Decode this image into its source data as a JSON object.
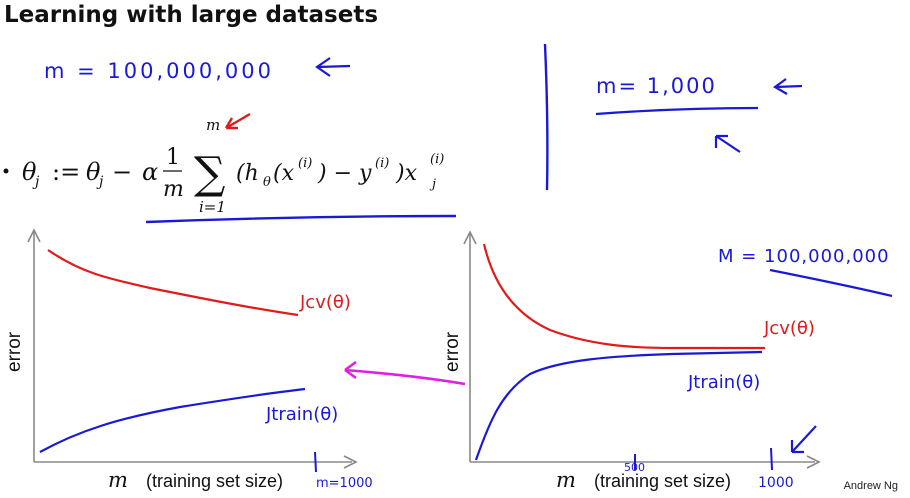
{
  "slide": {
    "title": "Learning with large datasets",
    "author": "Andrew Ng"
  },
  "annotations": {
    "m_large_top": "m = 100,000,000",
    "m_small": "m= 1,000",
    "m_large_right": "M = 100,000,000"
  },
  "equation": {
    "lhs": "θ",
    "lhs_sub": "j",
    "assign": ":=",
    "rhs_theta": "θ",
    "rhs_sub": "j",
    "minus": "−",
    "alpha": "α",
    "frac_num": "1",
    "frac_den": "m",
    "sum_upper": "m",
    "sum_lower": "i=1",
    "sum_symbol": "∑",
    "body_open": "(h",
    "h_sub": "θ",
    "body_x": "(x",
    "sup1": "(i)",
    "body_mid": ") − y",
    "sup2": "(i)",
    "body_close": ")x",
    "sup3": "(i)",
    "x_sub": "j"
  },
  "charts": [
    {
      "id": "left",
      "ylabel": "error",
      "xlabel_var": "m",
      "xlabel_text": "(training set size)",
      "x_end_label": "m=1000",
      "cv_label": "Jcv(θ)",
      "train_label": "Jtrain(θ)"
    },
    {
      "id": "right",
      "ylabel": "error",
      "xlabel_var": "m",
      "xlabel_text": "(training set size)",
      "x_mid_label": "500",
      "x_end_label": "1000",
      "cv_label": "Jcv(θ)",
      "train_label": "Jtrain(θ)"
    }
  ],
  "colors": {
    "ink_blue": "#1a1ad6",
    "ink_red": "#e01b1b",
    "ink_magenta": "#e020e0",
    "axis_gray": "#888888"
  }
}
